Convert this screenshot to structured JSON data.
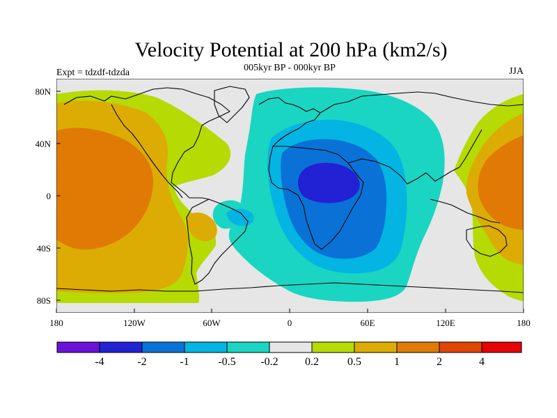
{
  "chart_data": {
    "type": "heatmap",
    "title": "Velocity Potential at 200 hPa (km2/s)",
    "subtitle_left": "Expt = tdzdf-tdzda",
    "subtitle_center": "005kyr BP - 000kyr BP",
    "subtitle_right": "JJA",
    "x_ticks": [
      "180",
      "120W",
      "60W",
      "0",
      "60E",
      "120E",
      "180"
    ],
    "y_ticks": [
      "80N",
      "40N",
      "0",
      "40S",
      "80S"
    ],
    "xlim": [
      -180,
      180
    ],
    "ylim": [
      -90,
      90
    ],
    "contour_levels": [
      "-4",
      "-2",
      "-1",
      "-0.5",
      "-0.2",
      "0.2",
      "0.5",
      "1",
      "2",
      "4"
    ],
    "colorbar_colors": [
      "#6a12d8",
      "#2222d4",
      "#0a72d6",
      "#04b4e2",
      "#1ad5c2",
      "#e6e6e6",
      "#b6da04",
      "#dcac04",
      "#e07a04",
      "#e04604",
      "#e60404"
    ],
    "background_color": "#e6e6e6"
  }
}
